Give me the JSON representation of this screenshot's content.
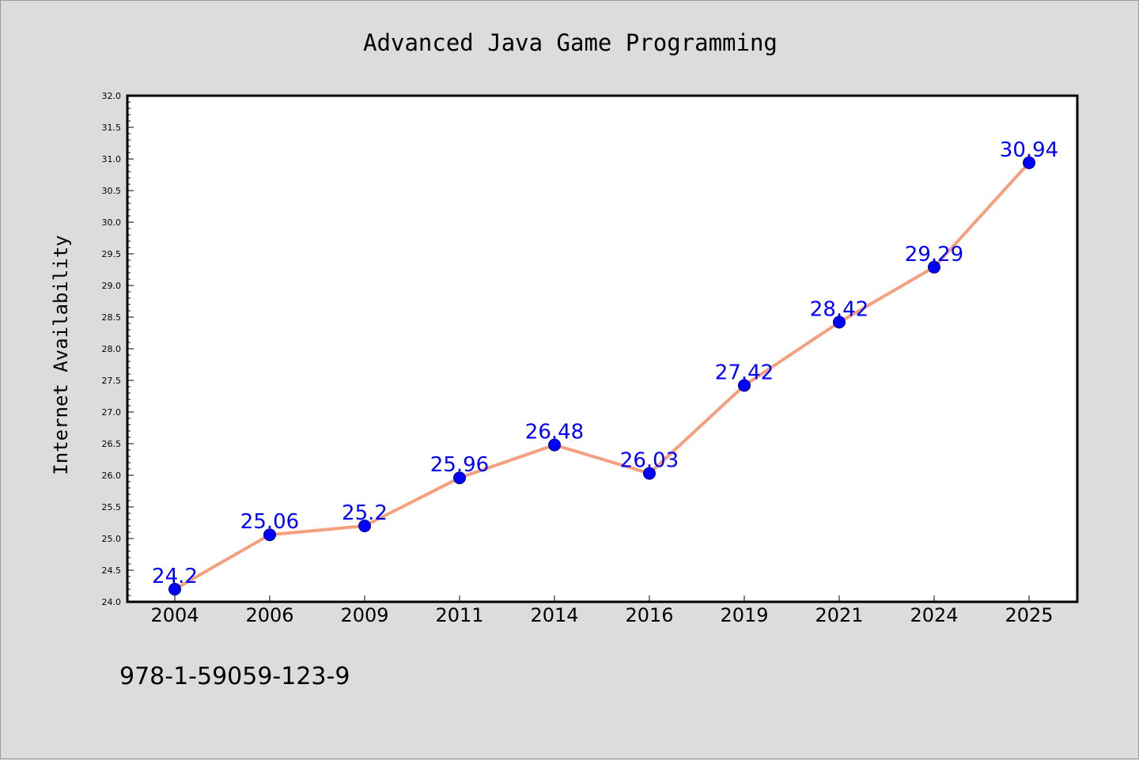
{
  "chart_data": {
    "type": "line",
    "title": "Advanced Java Game Programming",
    "xlabel": "",
    "ylabel": "Internet Availability",
    "categories": [
      "2004",
      "2006",
      "2009",
      "2011",
      "2014",
      "2016",
      "2019",
      "2021",
      "2024",
      "2025"
    ],
    "values": [
      24.2,
      25.06,
      25.2,
      25.96,
      26.48,
      26.03,
      27.42,
      28.42,
      29.29,
      30.94
    ],
    "data_labels": [
      "24.2",
      "25.06",
      "25.2",
      "25.96",
      "26.48",
      "26.03",
      "27.42",
      "28.42",
      "29.29",
      "30.94"
    ],
    "ylim": [
      24.0,
      32.0
    ],
    "yticks": [
      "24.0",
      "24.5",
      "25.0",
      "25.5",
      "26.0",
      "26.5",
      "27.0",
      "27.5",
      "28.0",
      "28.5",
      "29.0",
      "29.5",
      "30.0",
      "30.5",
      "31.0",
      "31.5",
      "32.0"
    ],
    "grid": false,
    "legend": "none",
    "line_color": "#f4a07e",
    "marker_color": "#0000ff",
    "label_color": "#0000ff"
  },
  "footer": {
    "isbn": "978-1-59059-123-9"
  }
}
